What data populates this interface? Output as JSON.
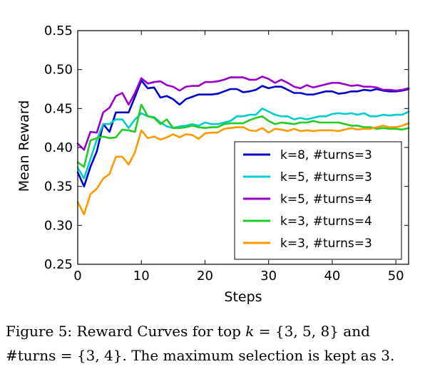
{
  "chart_data": {
    "type": "line",
    "xlabel": "Steps",
    "ylabel": "Mean Reward",
    "xlim": [
      0,
      52
    ],
    "ylim": [
      0.25,
      0.55
    ],
    "xticks": [
      0,
      10,
      20,
      30,
      40,
      50
    ],
    "yticks": [
      0.25,
      0.3,
      0.35,
      0.4,
      0.45,
      0.5,
      0.55
    ],
    "xtick_labels": [
      "0",
      "10",
      "20",
      "30",
      "40",
      "50"
    ],
    "ytick_labels": [
      "0.25",
      "0.30",
      "0.35",
      "0.40",
      "0.45",
      "0.50",
      "0.55"
    ],
    "grid": false,
    "legend_position": "lower-right",
    "x": [
      0,
      1,
      2,
      3,
      4,
      5,
      6,
      7,
      8,
      9,
      10,
      11,
      12,
      13,
      14,
      15,
      16,
      17,
      18,
      19,
      20,
      21,
      22,
      23,
      24,
      25,
      26,
      27,
      28,
      29,
      30,
      31,
      32,
      33,
      34,
      35,
      36,
      37,
      38,
      39,
      40,
      41,
      42,
      43,
      44,
      45,
      46,
      47,
      48,
      49,
      50,
      51,
      52
    ],
    "series": [
      {
        "name": "k=8, #turns=3",
        "color": "#0000cc",
        "values": [
          0.368,
          0.35,
          0.375,
          0.395,
          0.43,
          0.42,
          0.445,
          0.445,
          0.445,
          0.465,
          0.486,
          0.476,
          0.477,
          0.464,
          0.466,
          0.462,
          0.455,
          0.462,
          0.465,
          0.468,
          0.468,
          0.468,
          0.469,
          0.472,
          0.475,
          0.475,
          0.471,
          0.472,
          0.474,
          0.479,
          0.476,
          0.478,
          0.478,
          0.474,
          0.47,
          0.47,
          0.468,
          0.468,
          0.47,
          0.472,
          0.472,
          0.469,
          0.47,
          0.472,
          0.472,
          0.474,
          0.473,
          0.475,
          0.473,
          0.472,
          0.472,
          0.473,
          0.475
        ]
      },
      {
        "name": "k=5, #turns=3",
        "color": "#00cccc",
        "values": [
          0.374,
          0.36,
          0.385,
          0.41,
          0.43,
          0.43,
          0.436,
          0.436,
          0.425,
          0.436,
          0.444,
          0.44,
          0.439,
          0.432,
          0.427,
          0.425,
          0.427,
          0.428,
          0.43,
          0.428,
          0.432,
          0.43,
          0.43,
          0.432,
          0.434,
          0.44,
          0.44,
          0.442,
          0.442,
          0.45,
          0.446,
          0.442,
          0.44,
          0.44,
          0.436,
          0.438,
          0.436,
          0.438,
          0.44,
          0.44,
          0.443,
          0.444,
          0.443,
          0.444,
          0.442,
          0.444,
          0.44,
          0.44,
          0.442,
          0.441,
          0.442,
          0.442,
          0.446
        ]
      },
      {
        "name": "k=5, #turns=4",
        "color": "#9900cc",
        "values": [
          0.405,
          0.397,
          0.42,
          0.419,
          0.445,
          0.451,
          0.466,
          0.47,
          0.455,
          0.47,
          0.489,
          0.482,
          0.484,
          0.485,
          0.48,
          0.478,
          0.473,
          0.478,
          0.479,
          0.479,
          0.484,
          0.484,
          0.485,
          0.487,
          0.49,
          0.49,
          0.49,
          0.487,
          0.487,
          0.491,
          0.488,
          0.483,
          0.487,
          0.483,
          0.478,
          0.476,
          0.48,
          0.477,
          0.479,
          0.481,
          0.483,
          0.483,
          0.481,
          0.479,
          0.48,
          0.478,
          0.478,
          0.477,
          0.474,
          0.474,
          0.473,
          0.474,
          0.476
        ]
      },
      {
        "name": "k=3, #turns=4",
        "color": "#22cc22",
        "values": [
          0.381,
          0.375,
          0.409,
          0.412,
          0.414,
          0.412,
          0.413,
          0.423,
          0.422,
          0.42,
          0.455,
          0.44,
          0.438,
          0.43,
          0.436,
          0.425,
          0.425,
          0.426,
          0.428,
          0.426,
          0.425,
          0.426,
          0.426,
          0.43,
          0.431,
          0.431,
          0.431,
          0.435,
          0.438,
          0.44,
          0.434,
          0.43,
          0.432,
          0.431,
          0.43,
          0.432,
          0.432,
          0.434,
          0.432,
          0.432,
          0.432,
          0.432,
          0.43,
          0.428,
          0.428,
          0.426,
          0.426,
          0.424,
          0.425,
          0.424,
          0.424,
          0.423,
          0.425
        ]
      },
      {
        "name": "k=3, #turns=3",
        "color": "#ff9900",
        "values": [
          0.33,
          0.314,
          0.34,
          0.347,
          0.36,
          0.366,
          0.388,
          0.388,
          0.378,
          0.394,
          0.422,
          0.412,
          0.414,
          0.41,
          0.413,
          0.417,
          0.413,
          0.417,
          0.416,
          0.411,
          0.418,
          0.419,
          0.419,
          0.424,
          0.425,
          0.426,
          0.426,
          0.422,
          0.421,
          0.425,
          0.419,
          0.424,
          0.423,
          0.421,
          0.424,
          0.421,
          0.422,
          0.421,
          0.422,
          0.422,
          0.422,
          0.421,
          0.423,
          0.425,
          0.423,
          0.424,
          0.424,
          0.426,
          0.428,
          0.426,
          0.426,
          0.428,
          0.431
        ]
      }
    ]
  },
  "caption": {
    "line1_prefix": "Figure 5:  Reward Curves for top ",
    "line1_var": "k",
    "line1_eq": " = {3, 5, 8} and",
    "line2_var": "#turns",
    "line2_eq": " = {3, 4}",
    "line2_suffix": ". The maximum selection is kept as 3."
  }
}
